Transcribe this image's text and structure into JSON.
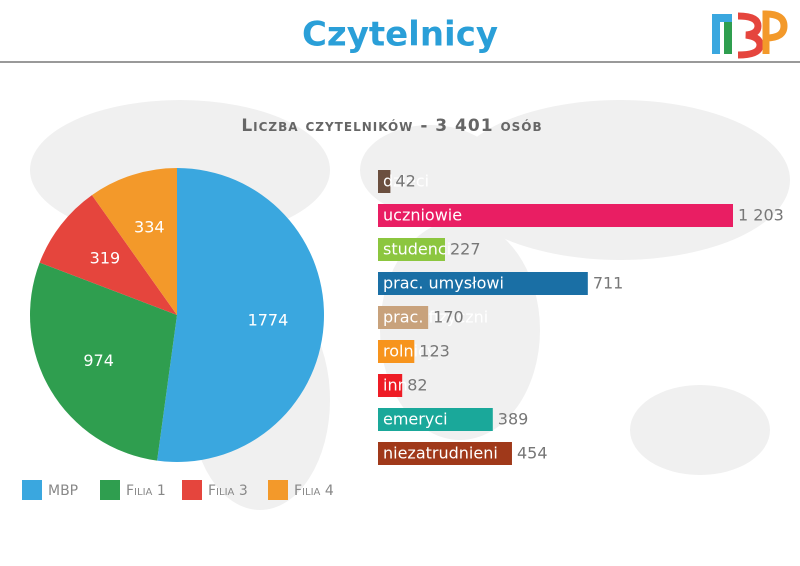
{
  "header": {
    "title": "Czytelnicy"
  },
  "subtitle": "Liczba czytelników - 3 401 osób",
  "chart_data": [
    {
      "type": "pie",
      "categories": [
        "MBP",
        "Filia 1",
        "Filia 3",
        "Filia 4"
      ],
      "values": [
        1774,
        974,
        319,
        334
      ],
      "colors": [
        "#3aa7df",
        "#2f9e4f",
        "#e5453d",
        "#f3992a"
      ],
      "legend": "bottom"
    },
    {
      "type": "bar",
      "orientation": "horizontal",
      "categories": [
        "dzieci",
        "uczniowie",
        "studenci",
        "prac. umysłowi",
        "prac. fizyczni",
        "rolnicy",
        "inni",
        "emeryci",
        "niezatrudnieni"
      ],
      "values": [
        42,
        1203,
        227,
        711,
        170,
        123,
        82,
        389,
        454
      ],
      "value_labels": [
        "42",
        "1 203",
        "227",
        "711",
        "170",
        "123",
        "82",
        "389",
        "454"
      ],
      "colors": [
        "#6b4f3f",
        "#e91e63",
        "#8cc63f",
        "#1a6fa5",
        "#c8a27c",
        "#f7941d",
        "#ee1c25",
        "#1aa89a",
        "#a0391a"
      ]
    }
  ]
}
